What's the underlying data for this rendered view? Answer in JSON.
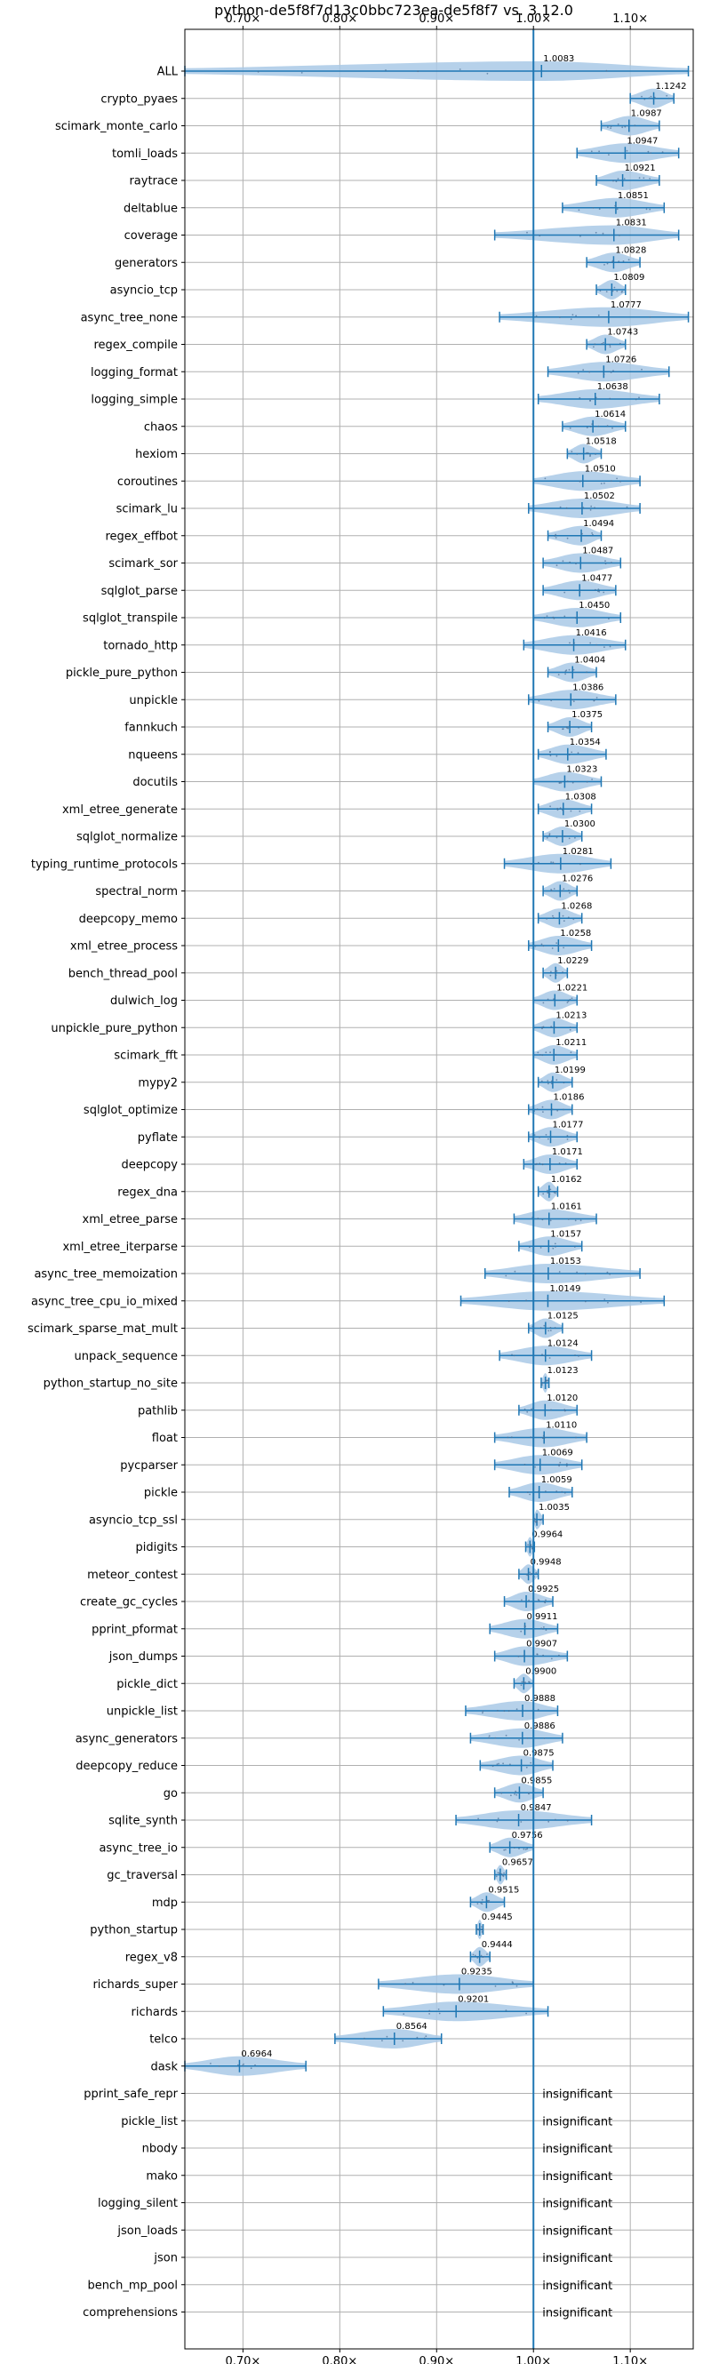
{
  "chart_data": {
    "type": "violin",
    "title": "python-de5f8f7d13c0bbc723ea-de5f8f7 vs. 3.12.0",
    "xlabel": "",
    "ylabel": "",
    "xlim": [
      0.64,
      1.165
    ],
    "x_ticks": [
      0.7,
      0.8,
      0.9,
      1.0,
      1.1
    ],
    "x_tick_labels": [
      "0.70×",
      "0.80×",
      "0.90×",
      "1.00×",
      "1.10×"
    ],
    "reference_line": 1.0,
    "grid": true,
    "insignificant_label": "insignificant",
    "colors": {
      "line": "#1f77b4",
      "fill": "#a9c9e6",
      "grid": "#b0b0b0"
    },
    "benchmarks": [
      {
        "name": "ALL",
        "median": 1.0083,
        "min": 0.64,
        "max": 1.16,
        "label": "1.0083"
      },
      {
        "name": "crypto_pyaes",
        "median": 1.1242,
        "min": 1.1,
        "max": 1.145,
        "label": "1.1242"
      },
      {
        "name": "scimark_monte_carlo",
        "median": 1.0987,
        "min": 1.07,
        "max": 1.13,
        "label": "1.0987"
      },
      {
        "name": "tomli_loads",
        "median": 1.0947,
        "min": 1.045,
        "max": 1.15,
        "label": "1.0947"
      },
      {
        "name": "raytrace",
        "median": 1.0921,
        "min": 1.065,
        "max": 1.13,
        "label": "1.0921"
      },
      {
        "name": "deltablue",
        "median": 1.0851,
        "min": 1.03,
        "max": 1.135,
        "label": "1.0851"
      },
      {
        "name": "coverage",
        "median": 1.0831,
        "min": 0.96,
        "max": 1.15,
        "label": "1.0831"
      },
      {
        "name": "generators",
        "median": 1.0828,
        "min": 1.055,
        "max": 1.11,
        "label": "1.0828"
      },
      {
        "name": "asyncio_tcp",
        "median": 1.0809,
        "min": 1.065,
        "max": 1.095,
        "label": "1.0809"
      },
      {
        "name": "async_tree_none",
        "median": 1.0777,
        "min": 0.965,
        "max": 1.16,
        "label": "1.0777"
      },
      {
        "name": "regex_compile",
        "median": 1.0743,
        "min": 1.055,
        "max": 1.095,
        "label": "1.0743"
      },
      {
        "name": "logging_format",
        "median": 1.0726,
        "min": 1.015,
        "max": 1.14,
        "label": "1.0726"
      },
      {
        "name": "logging_simple",
        "median": 1.0638,
        "min": 1.005,
        "max": 1.13,
        "label": "1.0638"
      },
      {
        "name": "chaos",
        "median": 1.0614,
        "min": 1.03,
        "max": 1.095,
        "label": "1.0614"
      },
      {
        "name": "hexiom",
        "median": 1.0518,
        "min": 1.035,
        "max": 1.07,
        "label": "1.0518"
      },
      {
        "name": "coroutines",
        "median": 1.051,
        "min": 1.0,
        "max": 1.11,
        "label": "1.0510"
      },
      {
        "name": "scimark_lu",
        "median": 1.0502,
        "min": 0.995,
        "max": 1.11,
        "label": "1.0502"
      },
      {
        "name": "regex_effbot",
        "median": 1.0494,
        "min": 1.015,
        "max": 1.07,
        "label": "1.0494"
      },
      {
        "name": "scimark_sor",
        "median": 1.0487,
        "min": 1.01,
        "max": 1.09,
        "label": "1.0487"
      },
      {
        "name": "sqlglot_parse",
        "median": 1.0477,
        "min": 1.01,
        "max": 1.085,
        "label": "1.0477"
      },
      {
        "name": "sqlglot_transpile",
        "median": 1.045,
        "min": 1.0,
        "max": 1.09,
        "label": "1.0450"
      },
      {
        "name": "tornado_http",
        "median": 1.0416,
        "min": 0.99,
        "max": 1.095,
        "label": "1.0416"
      },
      {
        "name": "pickle_pure_python",
        "median": 1.0404,
        "min": 1.015,
        "max": 1.065,
        "label": "1.0404"
      },
      {
        "name": "unpickle",
        "median": 1.0386,
        "min": 0.995,
        "max": 1.085,
        "label": "1.0386"
      },
      {
        "name": "fannkuch",
        "median": 1.0375,
        "min": 1.015,
        "max": 1.06,
        "label": "1.0375"
      },
      {
        "name": "nqueens",
        "median": 1.0354,
        "min": 1.005,
        "max": 1.075,
        "label": "1.0354"
      },
      {
        "name": "docutils",
        "median": 1.0323,
        "min": 1.0,
        "max": 1.07,
        "label": "1.0323"
      },
      {
        "name": "xml_etree_generate",
        "median": 1.0308,
        "min": 1.005,
        "max": 1.06,
        "label": "1.0308"
      },
      {
        "name": "sqlglot_normalize",
        "median": 1.03,
        "min": 1.01,
        "max": 1.05,
        "label": "1.0300"
      },
      {
        "name": "typing_runtime_protocols",
        "median": 1.0281,
        "min": 0.97,
        "max": 1.08,
        "label": "1.0281"
      },
      {
        "name": "spectral_norm",
        "median": 1.0276,
        "min": 1.01,
        "max": 1.045,
        "label": "1.0276"
      },
      {
        "name": "deepcopy_memo",
        "median": 1.0268,
        "min": 1.005,
        "max": 1.05,
        "label": "1.0268"
      },
      {
        "name": "xml_etree_process",
        "median": 1.0258,
        "min": 0.995,
        "max": 1.06,
        "label": "1.0258"
      },
      {
        "name": "bench_thread_pool",
        "median": 1.0229,
        "min": 1.01,
        "max": 1.035,
        "label": "1.0229"
      },
      {
        "name": "dulwich_log",
        "median": 1.0221,
        "min": 1.0,
        "max": 1.045,
        "label": "1.0221"
      },
      {
        "name": "unpickle_pure_python",
        "median": 1.0213,
        "min": 1.0,
        "max": 1.045,
        "label": "1.0213"
      },
      {
        "name": "scimark_fft",
        "median": 1.0211,
        "min": 1.0,
        "max": 1.045,
        "label": "1.0211"
      },
      {
        "name": "mypy2",
        "median": 1.0199,
        "min": 1.005,
        "max": 1.04,
        "label": "1.0199"
      },
      {
        "name": "sqlglot_optimize",
        "median": 1.0186,
        "min": 0.995,
        "max": 1.04,
        "label": "1.0186"
      },
      {
        "name": "pyflate",
        "median": 1.0177,
        "min": 0.995,
        "max": 1.045,
        "label": "1.0177"
      },
      {
        "name": "deepcopy",
        "median": 1.0171,
        "min": 0.99,
        "max": 1.045,
        "label": "1.0171"
      },
      {
        "name": "regex_dna",
        "median": 1.0162,
        "min": 1.005,
        "max": 1.025,
        "label": "1.0162"
      },
      {
        "name": "xml_etree_parse",
        "median": 1.0161,
        "min": 0.98,
        "max": 1.065,
        "label": "1.0161"
      },
      {
        "name": "xml_etree_iterparse",
        "median": 1.0157,
        "min": 0.985,
        "max": 1.05,
        "label": "1.0157"
      },
      {
        "name": "async_tree_memoization",
        "median": 1.0153,
        "min": 0.95,
        "max": 1.11,
        "label": "1.0153"
      },
      {
        "name": "async_tree_cpu_io_mixed",
        "median": 1.0149,
        "min": 0.925,
        "max": 1.135,
        "label": "1.0149"
      },
      {
        "name": "scimark_sparse_mat_mult",
        "median": 1.0125,
        "min": 0.995,
        "max": 1.03,
        "label": "1.0125"
      },
      {
        "name": "unpack_sequence",
        "median": 1.0124,
        "min": 0.965,
        "max": 1.06,
        "label": "1.0124"
      },
      {
        "name": "python_startup_no_site",
        "median": 1.0123,
        "min": 1.008,
        "max": 1.016,
        "label": "1.0123"
      },
      {
        "name": "pathlib",
        "median": 1.012,
        "min": 0.985,
        "max": 1.045,
        "label": "1.0120"
      },
      {
        "name": "float",
        "median": 1.011,
        "min": 0.96,
        "max": 1.055,
        "label": "1.0110"
      },
      {
        "name": "pycparser",
        "median": 1.0069,
        "min": 0.96,
        "max": 1.05,
        "label": "1.0069"
      },
      {
        "name": "pickle",
        "median": 1.0059,
        "min": 0.975,
        "max": 1.04,
        "label": "1.0059"
      },
      {
        "name": "asyncio_tcp_ssl",
        "median": 1.0035,
        "min": 1.0,
        "max": 1.01,
        "label": "1.0035"
      },
      {
        "name": "pidigits",
        "median": 0.9964,
        "min": 0.992,
        "max": 1.001,
        "label": "0.9964"
      },
      {
        "name": "meteor_contest",
        "median": 0.9948,
        "min": 0.985,
        "max": 1.005,
        "label": "0.9948"
      },
      {
        "name": "create_gc_cycles",
        "median": 0.9925,
        "min": 0.97,
        "max": 1.02,
        "label": "0.9925"
      },
      {
        "name": "pprint_pformat",
        "median": 0.9911,
        "min": 0.955,
        "max": 1.025,
        "label": "0.9911"
      },
      {
        "name": "json_dumps",
        "median": 0.9907,
        "min": 0.96,
        "max": 1.035,
        "label": "0.9907"
      },
      {
        "name": "pickle_dict",
        "median": 0.99,
        "min": 0.98,
        "max": 1.0,
        "label": "0.9900"
      },
      {
        "name": "unpickle_list",
        "median": 0.9888,
        "min": 0.93,
        "max": 1.025,
        "label": "0.9888"
      },
      {
        "name": "async_generators",
        "median": 0.9886,
        "min": 0.935,
        "max": 1.03,
        "label": "0.9886"
      },
      {
        "name": "deepcopy_reduce",
        "median": 0.9875,
        "min": 0.945,
        "max": 1.02,
        "label": "0.9875"
      },
      {
        "name": "go",
        "median": 0.9855,
        "min": 0.96,
        "max": 1.01,
        "label": "0.9855"
      },
      {
        "name": "sqlite_synth",
        "median": 0.9847,
        "min": 0.92,
        "max": 1.06,
        "label": "0.9847"
      },
      {
        "name": "async_tree_io",
        "median": 0.9756,
        "min": 0.955,
        "max": 1.0,
        "label": "0.9756"
      },
      {
        "name": "gc_traversal",
        "median": 0.9657,
        "min": 0.96,
        "max": 0.972,
        "label": "0.9657"
      },
      {
        "name": "mdp",
        "median": 0.9515,
        "min": 0.935,
        "max": 0.97,
        "label": "0.9515"
      },
      {
        "name": "python_startup",
        "median": 0.9445,
        "min": 0.941,
        "max": 0.948,
        "label": "0.9445"
      },
      {
        "name": "regex_v8",
        "median": 0.9444,
        "min": 0.935,
        "max": 0.955,
        "label": "0.9444"
      },
      {
        "name": "richards_super",
        "median": 0.9235,
        "min": 0.84,
        "max": 1.0,
        "label": "0.9235"
      },
      {
        "name": "richards",
        "median": 0.9201,
        "min": 0.845,
        "max": 1.015,
        "label": "0.9201"
      },
      {
        "name": "telco",
        "median": 0.8564,
        "min": 0.795,
        "max": 0.905,
        "label": "0.8564"
      },
      {
        "name": "dask",
        "median": 0.6964,
        "min": 0.64,
        "max": 0.765,
        "label": "0.6964"
      },
      {
        "name": "pprint_safe_repr",
        "insignificant": true
      },
      {
        "name": "pickle_list",
        "insignificant": true
      },
      {
        "name": "nbody",
        "insignificant": true
      },
      {
        "name": "mako",
        "insignificant": true
      },
      {
        "name": "logging_silent",
        "insignificant": true
      },
      {
        "name": "json_loads",
        "insignificant": true
      },
      {
        "name": "json",
        "insignificant": true
      },
      {
        "name": "bench_mp_pool",
        "insignificant": true
      },
      {
        "name": "comprehensions",
        "insignificant": true
      }
    ]
  }
}
